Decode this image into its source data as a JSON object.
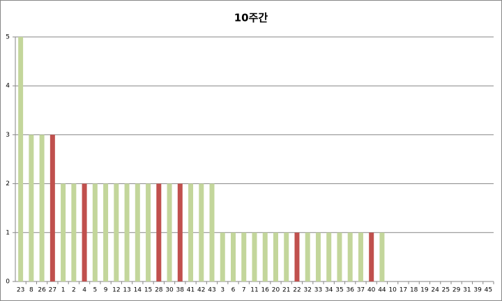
{
  "chart_data": {
    "type": "bar",
    "title": "10주간",
    "categories": [
      "23",
      "8",
      "26",
      "27",
      "1",
      "2",
      "4",
      "5",
      "9",
      "12",
      "13",
      "14",
      "15",
      "28",
      "30",
      "38",
      "41",
      "42",
      "43",
      "3",
      "6",
      "7",
      "11",
      "16",
      "20",
      "21",
      "22",
      "32",
      "33",
      "34",
      "35",
      "36",
      "37",
      "40",
      "44",
      "10",
      "17",
      "18",
      "19",
      "24",
      "25",
      "29",
      "31",
      "39",
      "45"
    ],
    "values": [
      5,
      3,
      3,
      3,
      2,
      2,
      2,
      2,
      2,
      2,
      2,
      2,
      2,
      2,
      2,
      2,
      2,
      2,
      2,
      1,
      1,
      1,
      1,
      1,
      1,
      1,
      1,
      1,
      1,
      1,
      1,
      1,
      1,
      1,
      1,
      0,
      0,
      0,
      0,
      0,
      0,
      0,
      0,
      0,
      0
    ],
    "colors": [
      "#c3d69b",
      "#c3d69b",
      "#c3d69b",
      "#c0504d",
      "#c3d69b",
      "#c3d69b",
      "#c0504d",
      "#c3d69b",
      "#c3d69b",
      "#c3d69b",
      "#c3d69b",
      "#c3d69b",
      "#c3d69b",
      "#c0504d",
      "#c3d69b",
      "#c0504d",
      "#c3d69b",
      "#c3d69b",
      "#c3d69b",
      "#c3d69b",
      "#c3d69b",
      "#c3d69b",
      "#c3d69b",
      "#c3d69b",
      "#c3d69b",
      "#c3d69b",
      "#c0504d",
      "#c3d69b",
      "#c3d69b",
      "#c3d69b",
      "#c3d69b",
      "#c3d69b",
      "#c3d69b",
      "#c0504d",
      "#c3d69b",
      "#c3d69b",
      "#c3d69b",
      "#c3d69b",
      "#c3d69b",
      "#c3d69b",
      "#c3d69b",
      "#c3d69b",
      "#c3d69b",
      "#c3d69b",
      "#c3d69b"
    ],
    "ylim": [
      0,
      5
    ],
    "yticks": [
      0,
      1,
      2,
      3,
      4,
      5
    ],
    "grid": true
  }
}
